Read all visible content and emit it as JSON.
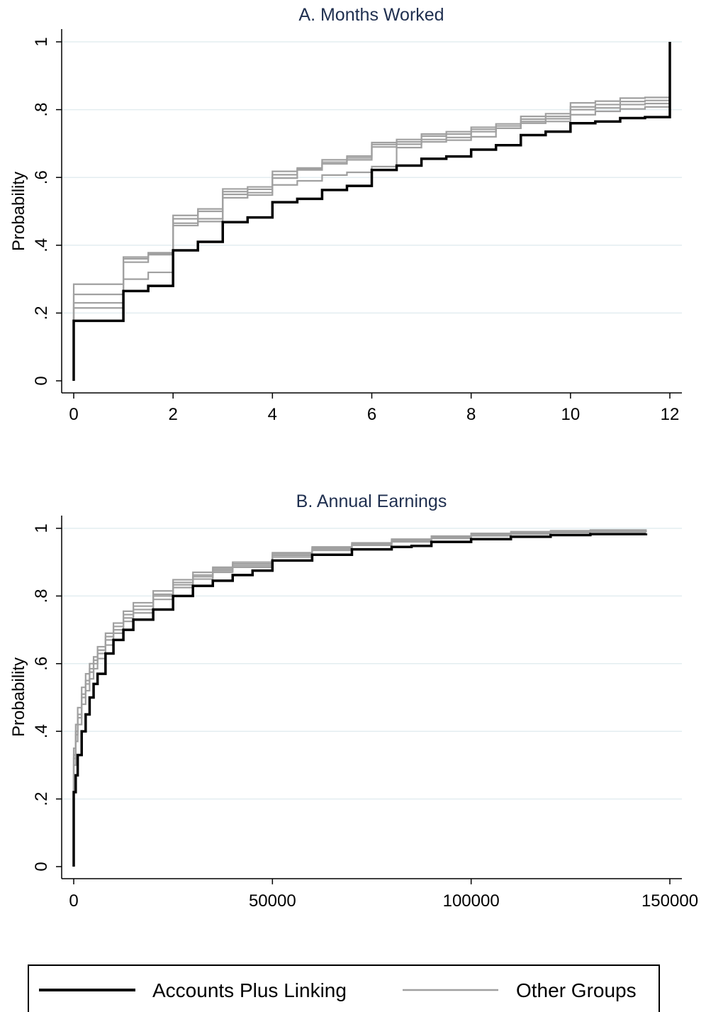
{
  "chart_data": [
    {
      "type": "line",
      "step": true,
      "title": "A. Months Worked",
      "xlabel": "",
      "ylabel": "Probability",
      "xlim": [
        0,
        12
      ],
      "ylim": [
        0,
        1
      ],
      "x_ticks": [
        0,
        2,
        4,
        6,
        8,
        10,
        12
      ],
      "x_tick_labels": [
        "0",
        "2",
        "4",
        "6",
        "8",
        "10",
        "12"
      ],
      "y_ticks": [
        0,
        0.2,
        0.4,
        0.6,
        0.8,
        1
      ],
      "y_tick_labels": [
        "0",
        ".2",
        ".4",
        ".6",
        ".8",
        "1"
      ],
      "grid": true,
      "series": [
        {
          "name": "Other Groups",
          "color": "#a0a0a0",
          "x": [
            0,
            1,
            1.5,
            2,
            2.5,
            3,
            3.5,
            4,
            4.5,
            5,
            5.5,
            6,
            6.5,
            7,
            7.5,
            8,
            8.5,
            9,
            9.5,
            10,
            10.5,
            11,
            11.5,
            12
          ],
          "y": [
            0.285,
            0.365,
            0.378,
            0.488,
            0.507,
            0.566,
            0.572,
            0.618,
            0.628,
            0.652,
            0.663,
            0.703,
            0.712,
            0.728,
            0.735,
            0.748,
            0.758,
            0.78,
            0.788,
            0.82,
            0.825,
            0.834,
            0.836,
            1.0
          ]
        },
        {
          "name": "Other Groups",
          "color": "#a0a0a0",
          "x": [
            0,
            1,
            1.5,
            2,
            2.5,
            3,
            3.5,
            4,
            4.5,
            5,
            5.5,
            6,
            6.5,
            7,
            7.5,
            8,
            8.5,
            9,
            9.5,
            10,
            10.5,
            11,
            11.5,
            12
          ],
          "y": [
            0.255,
            0.36,
            0.375,
            0.478,
            0.5,
            0.558,
            0.565,
            0.608,
            0.622,
            0.645,
            0.658,
            0.697,
            0.705,
            0.722,
            0.728,
            0.742,
            0.752,
            0.772,
            0.78,
            0.808,
            0.815,
            0.824,
            0.827,
            1.0
          ]
        },
        {
          "name": "Other Groups",
          "color": "#a0a0a0",
          "x": [
            0,
            1,
            1.5,
            2,
            2.5,
            3,
            3.5,
            4,
            4.5,
            5,
            5.5,
            6,
            6.5,
            7,
            7.5,
            8,
            8.5,
            9,
            9.5,
            10,
            10.5,
            11,
            11.5,
            12
          ],
          "y": [
            0.23,
            0.35,
            0.372,
            0.465,
            0.478,
            0.55,
            0.555,
            0.598,
            0.625,
            0.64,
            0.652,
            0.69,
            0.698,
            0.712,
            0.718,
            0.735,
            0.745,
            0.765,
            0.773,
            0.8,
            0.805,
            0.815,
            0.818,
            1.0
          ]
        },
        {
          "name": "Other Groups",
          "color": "#a0a0a0",
          "x": [
            0,
            1,
            1.5,
            2,
            2.5,
            3,
            3.5,
            4,
            4.5,
            5,
            5.5,
            6,
            6.5,
            7,
            7.5,
            8,
            8.5,
            9,
            9.5,
            10,
            10.5,
            11,
            11.5,
            12
          ],
          "y": [
            0.215,
            0.3,
            0.32,
            0.458,
            0.47,
            0.54,
            0.548,
            0.578,
            0.59,
            0.607,
            0.615,
            0.632,
            0.688,
            0.705,
            0.71,
            0.72,
            0.745,
            0.76,
            0.765,
            0.785,
            0.795,
            0.802,
            0.808,
            1.0
          ]
        },
        {
          "name": "Accounts Plus Linking",
          "color": "#000000",
          "x": [
            0,
            1,
            1.5,
            2,
            2.5,
            3,
            3.5,
            4,
            4.5,
            5,
            5.5,
            6,
            6.5,
            7,
            7.5,
            8,
            8.5,
            9,
            9.5,
            10,
            10.5,
            11,
            11.5,
            12
          ],
          "y": [
            0.177,
            0.265,
            0.28,
            0.385,
            0.41,
            0.468,
            0.482,
            0.527,
            0.537,
            0.563,
            0.575,
            0.622,
            0.635,
            0.655,
            0.662,
            0.682,
            0.695,
            0.725,
            0.735,
            0.76,
            0.765,
            0.775,
            0.778,
            1.0
          ]
        }
      ]
    },
    {
      "type": "line",
      "step": true,
      "title": "B. Annual Earnings",
      "xlabel": "",
      "ylabel": "Probability",
      "xlim": [
        0,
        150000
      ],
      "ylim": [
        0,
        1
      ],
      "x_ticks": [
        0,
        50000,
        100000,
        150000
      ],
      "x_tick_labels": [
        "0",
        "50000",
        "100000",
        "150000"
      ],
      "y_ticks": [
        0,
        0.2,
        0.4,
        0.6,
        0.8,
        1
      ],
      "y_tick_labels": [
        "0",
        ".2",
        ".4",
        ".6",
        ".8",
        "1"
      ],
      "grid": true,
      "series": [
        {
          "name": "Other Groups",
          "color": "#a0a0a0",
          "x": [
            0,
            500,
            1000,
            2000,
            3000,
            4000,
            5000,
            6000,
            8000,
            10000,
            12500,
            15000,
            20000,
            25000,
            30000,
            35000,
            40000,
            50000,
            60000,
            70000,
            80000,
            90000,
            100000,
            110000,
            120000,
            130000,
            144000
          ],
          "y": [
            0.35,
            0.42,
            0.47,
            0.53,
            0.57,
            0.6,
            0.62,
            0.65,
            0.69,
            0.72,
            0.755,
            0.78,
            0.815,
            0.848,
            0.87,
            0.885,
            0.9,
            0.928,
            0.945,
            0.957,
            0.968,
            0.977,
            0.985,
            0.99,
            0.993,
            0.995,
            0.997
          ]
        },
        {
          "name": "Other Groups",
          "color": "#a0a0a0",
          "x": [
            0,
            500,
            1000,
            2000,
            3000,
            4000,
            5000,
            6000,
            8000,
            10000,
            12500,
            15000,
            20000,
            25000,
            30000,
            35000,
            40000,
            50000,
            60000,
            70000,
            80000,
            90000,
            100000,
            110000,
            120000,
            130000,
            144000
          ],
          "y": [
            0.33,
            0.4,
            0.45,
            0.51,
            0.55,
            0.585,
            0.61,
            0.64,
            0.68,
            0.71,
            0.745,
            0.77,
            0.805,
            0.84,
            0.862,
            0.88,
            0.895,
            0.925,
            0.942,
            0.955,
            0.966,
            0.975,
            0.983,
            0.988,
            0.991,
            0.993,
            0.995
          ]
        },
        {
          "name": "Other Groups",
          "color": "#a0a0a0",
          "x": [
            0,
            500,
            1000,
            2000,
            3000,
            4000,
            5000,
            6000,
            8000,
            10000,
            12500,
            15000,
            20000,
            25000,
            30000,
            35000,
            40000,
            50000,
            60000,
            70000,
            80000,
            90000,
            100000,
            110000,
            120000,
            130000,
            144000
          ],
          "y": [
            0.32,
            0.39,
            0.44,
            0.5,
            0.54,
            0.575,
            0.6,
            0.63,
            0.67,
            0.7,
            0.735,
            0.76,
            0.8,
            0.833,
            0.857,
            0.875,
            0.89,
            0.92,
            0.938,
            0.952,
            0.962,
            0.972,
            0.98,
            0.985,
            0.989,
            0.991,
            0.993
          ]
        },
        {
          "name": "Other Groups",
          "color": "#a0a0a0",
          "x": [
            0,
            500,
            1000,
            2000,
            3000,
            4000,
            5000,
            6000,
            8000,
            10000,
            12500,
            15000,
            20000,
            25000,
            30000,
            35000,
            40000,
            50000,
            60000,
            70000,
            80000,
            90000,
            100000,
            110000,
            120000,
            130000,
            144000
          ],
          "y": [
            0.3,
            0.37,
            0.42,
            0.48,
            0.52,
            0.555,
            0.585,
            0.615,
            0.655,
            0.69,
            0.725,
            0.75,
            0.79,
            0.825,
            0.85,
            0.87,
            0.885,
            0.915,
            0.935,
            0.95,
            0.96,
            0.97,
            0.978,
            0.983,
            0.987,
            0.99,
            0.992
          ]
        },
        {
          "name": "Accounts Plus Linking",
          "color": "#000000",
          "x": [
            0,
            500,
            1000,
            2000,
            3000,
            4000,
            5000,
            6000,
            8000,
            10000,
            12500,
            15000,
            20000,
            25000,
            30000,
            35000,
            40000,
            45000,
            50000,
            60000,
            70000,
            80000,
            85000,
            90000,
            100000,
            110000,
            120000,
            130000,
            144000
          ],
          "y": [
            0.22,
            0.27,
            0.33,
            0.4,
            0.45,
            0.5,
            0.54,
            0.57,
            0.63,
            0.67,
            0.7,
            0.73,
            0.76,
            0.8,
            0.83,
            0.845,
            0.862,
            0.875,
            0.905,
            0.922,
            0.938,
            0.945,
            0.948,
            0.96,
            0.968,
            0.975,
            0.98,
            0.983,
            0.985
          ]
        }
      ]
    }
  ],
  "legend": {
    "items": [
      {
        "label": "Accounts Plus Linking",
        "color": "#000000"
      },
      {
        "label": "Other Groups",
        "color": "#a0a0a0"
      }
    ]
  }
}
